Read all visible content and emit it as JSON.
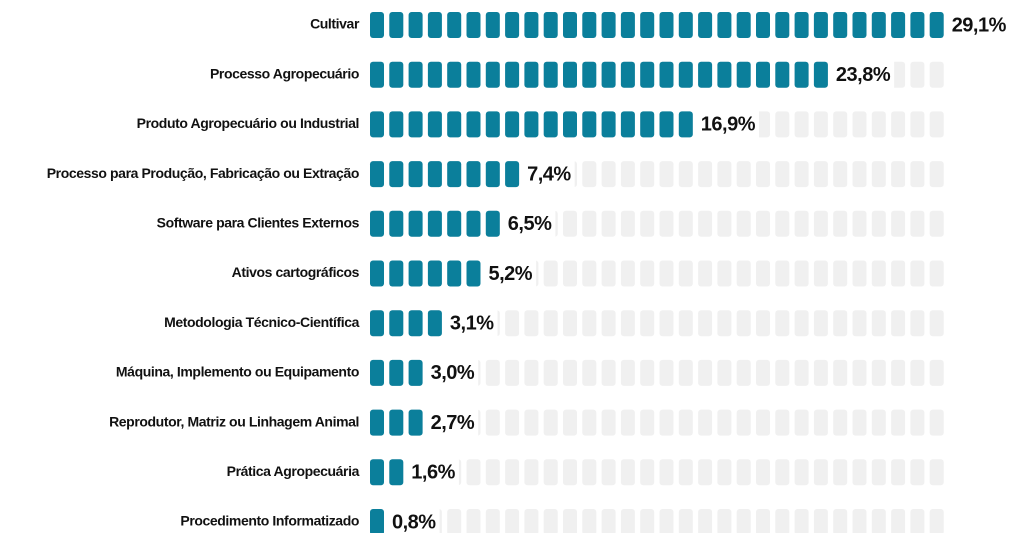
{
  "chart_data": {
    "type": "pictogram-bar",
    "categories": [
      "Cultivar",
      "Processo Agropecuário",
      "Produto Agropecuário ou Industrial",
      "Processo para Produção, Fabricação ou Extração",
      "Software para Clientes Externos",
      "Ativos cartográficos",
      "Metodologia Técnico-Científica",
      "Máquina, Implemento ou Equipamento",
      "Reprodutor, Matriz ou Linhagem Animal",
      "Prática Agropecuária",
      "Procedimento Informatizado"
    ],
    "values": [
      29.1,
      23.8,
      16.9,
      7.4,
      6.5,
      5.2,
      3.1,
      3.0,
      2.7,
      1.6,
      0.8
    ],
    "value_labels": [
      "29,1%",
      "23,8%",
      "16,9%",
      "7,4%",
      "6,5%",
      "5,2%",
      "3,1%",
      "3,0%",
      "2,7%",
      "1,6%",
      "0,8%"
    ],
    "color": "#0b7f9b",
    "track_color": "#f0f0f0",
    "xlim": [
      0,
      30
    ]
  }
}
